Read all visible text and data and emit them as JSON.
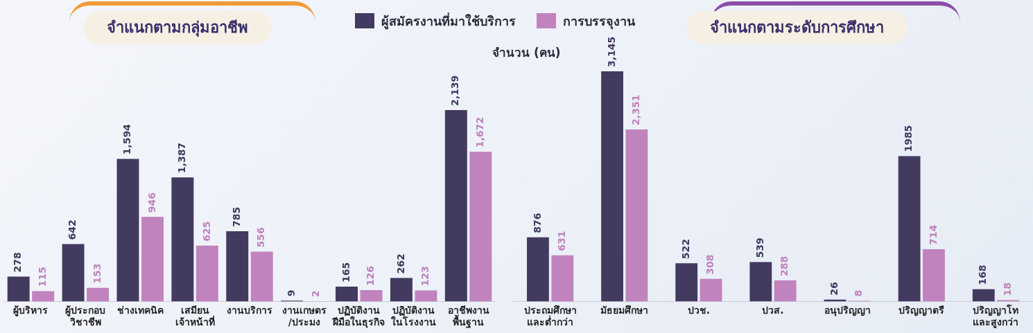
{
  "chart_data": [
    {
      "type": "bar",
      "title": "จำแนกตามกลุ่มอาชีพ",
      "ylabel": "จำนวน (คน)",
      "legend": "top",
      "tick_labels": "x",
      "grid": false,
      "categories": [
        "ผู้บริหาร",
        "ผู้ประกอบ\nวิชาชีพ",
        "ช่างเทคนิค",
        "เสมียน\nเจ้าหน้าที่",
        "งานบริการ",
        "งานเกษตร\n/ประมง",
        "ปฏิบัติงาน\nฝีมือในธุรกิจ",
        "ปฏิบัติงาน\nในโรงงาน",
        "อาชีพงาน\nพื้นฐาน"
      ],
      "series": [
        {
          "name": "ผู้สมัครงานที่มาใช้บริการ",
          "color": "#433a60",
          "values": [
            278,
            642,
            1594,
            1387,
            785,
            9,
            165,
            262,
            2139
          ],
          "value_labels": [
            "278",
            "642",
            "1,594",
            "1,387",
            "785",
            "9",
            "165",
            "262",
            "2,139"
          ]
        },
        {
          "name": "การบรรจุงาน",
          "color": "#c083bd",
          "values": [
            115,
            153,
            946,
            625,
            556,
            2,
            126,
            123,
            1672
          ],
          "value_labels": [
            "115",
            "153",
            "946",
            "625",
            "556",
            "2",
            "126",
            "123",
            "1,672"
          ]
        }
      ]
    },
    {
      "type": "bar",
      "title": "จำแนกตามระดับการศึกษา",
      "tick_labels": "x",
      "grid": false,
      "categories": [
        "ประถมศึกษา\nและต่ำกว่า",
        "มัธยมศึกษา",
        "ปวช.",
        "ปวส.",
        "อนุปริญญา",
        "ปริญญาตรี",
        "ปริญญาโท\nและสูงกว่า"
      ],
      "series": [
        {
          "color": "#433a60",
          "values": [
            876,
            3145,
            522,
            539,
            26,
            1985,
            168
          ],
          "value_labels": [
            "876",
            "3,145",
            "522",
            "539",
            "26",
            "1985",
            "168"
          ]
        },
        {
          "color": "#c083bd",
          "values": [
            631,
            2351,
            308,
            288,
            8,
            714,
            18
          ],
          "value_labels": [
            "631",
            "2,351",
            "308",
            "288",
            "8",
            "714",
            "18"
          ]
        }
      ]
    }
  ]
}
